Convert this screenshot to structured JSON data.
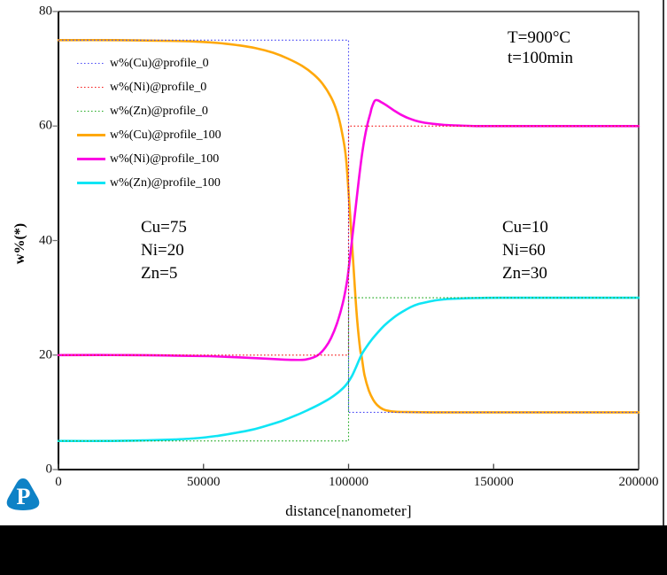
{
  "window": {
    "logo_letter": "P",
    "logo_color": "#0e82c6",
    "bottom_bar_color": "#000000"
  },
  "chart_data": {
    "type": "line",
    "title": "",
    "xlabel": "distance[nanometer]",
    "ylabel": "w%(*)",
    "xlim": [
      0,
      200000
    ],
    "ylim": [
      0,
      80
    ],
    "x_ticks": [
      0,
      50000,
      100000,
      150000,
      200000
    ],
    "y_ticks": [
      0,
      20,
      40,
      60,
      80
    ],
    "grid": false,
    "legend_position": "top-left",
    "annotations": {
      "conditions": [
        "T=900°C",
        "t=100min"
      ],
      "left_region": [
        "Cu=75",
        "Ni=20",
        "Zn=5"
      ],
      "right_region": [
        "Cu=10",
        "Ni=60",
        "Zn=30"
      ]
    },
    "series": [
      {
        "name": "w%(Cu)@profile_0",
        "color": "#4545f5",
        "style": "dotted",
        "points": [
          [
            0,
            75
          ],
          [
            100000,
            75
          ],
          [
            100000,
            10
          ],
          [
            200000,
            10
          ]
        ]
      },
      {
        "name": "w%(Ni)@profile_0",
        "color": "#f51414",
        "style": "dotted",
        "points": [
          [
            0,
            20
          ],
          [
            100000,
            20
          ],
          [
            100000,
            60
          ],
          [
            200000,
            60
          ]
        ]
      },
      {
        "name": "w%(Zn)@profile_0",
        "color": "#1ca81c",
        "style": "dotted",
        "points": [
          [
            0,
            5
          ],
          [
            100000,
            5
          ],
          [
            100000,
            30
          ],
          [
            200000,
            30
          ]
        ]
      },
      {
        "name": "w%(Cu)@profile_100",
        "color": "#ffa80a",
        "style": "solid",
        "points": [
          [
            0,
            75
          ],
          [
            20000,
            75
          ],
          [
            35000,
            74.9
          ],
          [
            45000,
            74.8
          ],
          [
            55000,
            74.5
          ],
          [
            62000,
            74.1
          ],
          [
            68000,
            73.6
          ],
          [
            74000,
            72.8
          ],
          [
            79000,
            71.8
          ],
          [
            84000,
            70.5
          ],
          [
            88000,
            69
          ],
          [
            91000,
            67.4
          ],
          [
            94000,
            65
          ],
          [
            96000,
            62.5
          ],
          [
            97500,
            59.5
          ],
          [
            99000,
            55
          ],
          [
            100000,
            48.5
          ],
          [
            101000,
            41
          ],
          [
            102000,
            33
          ],
          [
            103000,
            26
          ],
          [
            104000,
            21
          ],
          [
            104500,
            19.8
          ],
          [
            105500,
            16.5
          ],
          [
            107000,
            13.8
          ],
          [
            108500,
            12.2
          ],
          [
            110000,
            11.2
          ],
          [
            112000,
            10.5
          ],
          [
            115000,
            10.15
          ],
          [
            120000,
            10.05
          ],
          [
            128000,
            10
          ],
          [
            140000,
            10
          ],
          [
            155000,
            10
          ],
          [
            170000,
            10
          ],
          [
            185000,
            10
          ],
          [
            200000,
            10
          ]
        ]
      },
      {
        "name": "w%(Ni)@profile_100",
        "color": "#fb06e3",
        "style": "solid",
        "points": [
          [
            0,
            20
          ],
          [
            25000,
            20
          ],
          [
            40000,
            19.9
          ],
          [
            52000,
            19.8
          ],
          [
            62000,
            19.6
          ],
          [
            70000,
            19.4
          ],
          [
            76000,
            19.25
          ],
          [
            81000,
            19.15
          ],
          [
            85000,
            19.2
          ],
          [
            88000,
            19.6
          ],
          [
            90000,
            20.2
          ],
          [
            92000,
            21.3
          ],
          [
            94000,
            23
          ],
          [
            96000,
            25.5
          ],
          [
            98000,
            29
          ],
          [
            99500,
            33
          ],
          [
            100500,
            37
          ],
          [
            101500,
            41.5
          ],
          [
            102500,
            46
          ],
          [
            103500,
            50.5
          ],
          [
            104500,
            54.5
          ],
          [
            105500,
            57.8
          ],
          [
            106500,
            60.3
          ],
          [
            107500,
            62.2
          ],
          [
            108000,
            63.2
          ],
          [
            109000,
            64.4
          ],
          [
            110000,
            64.5
          ],
          [
            111500,
            64.1
          ],
          [
            114000,
            63.3
          ],
          [
            116000,
            62.6
          ],
          [
            118000,
            62
          ],
          [
            120500,
            61.4
          ],
          [
            123000,
            60.95
          ],
          [
            126000,
            60.6
          ],
          [
            129000,
            60.4
          ],
          [
            133000,
            60.2
          ],
          [
            138000,
            60.08
          ],
          [
            144000,
            60
          ],
          [
            152000,
            60
          ],
          [
            165000,
            60
          ],
          [
            180000,
            60
          ],
          [
            200000,
            60
          ]
        ]
      },
      {
        "name": "w%(Zn)@profile_100",
        "color": "#0fe5f5",
        "style": "solid",
        "points": [
          [
            0,
            5
          ],
          [
            18000,
            5
          ],
          [
            30000,
            5.1
          ],
          [
            40000,
            5.25
          ],
          [
            48000,
            5.5
          ],
          [
            55000,
            5.9
          ],
          [
            61000,
            6.4
          ],
          [
            67000,
            7
          ],
          [
            72000,
            7.7
          ],
          [
            77000,
            8.5
          ],
          [
            82000,
            9.5
          ],
          [
            86000,
            10.4
          ],
          [
            90000,
            11.4
          ],
          [
            93500,
            12.4
          ],
          [
            96500,
            13.5
          ],
          [
            99000,
            14.7
          ],
          [
            101000,
            16.2
          ],
          [
            102500,
            17.8
          ],
          [
            104400,
            20
          ],
          [
            106000,
            21.3
          ],
          [
            108000,
            22.7
          ],
          [
            110000,
            23.9
          ],
          [
            112000,
            25
          ],
          [
            114000,
            25.9
          ],
          [
            116500,
            26.9
          ],
          [
            119000,
            27.7
          ],
          [
            121500,
            28.4
          ],
          [
            124000,
            28.9
          ],
          [
            127000,
            29.25
          ],
          [
            130000,
            29.55
          ],
          [
            133500,
            29.75
          ],
          [
            137000,
            29.85
          ],
          [
            141000,
            29.93
          ],
          [
            146000,
            29.97
          ],
          [
            152000,
            30
          ],
          [
            165000,
            30
          ],
          [
            180000,
            30
          ],
          [
            200000,
            30
          ]
        ]
      }
    ]
  }
}
